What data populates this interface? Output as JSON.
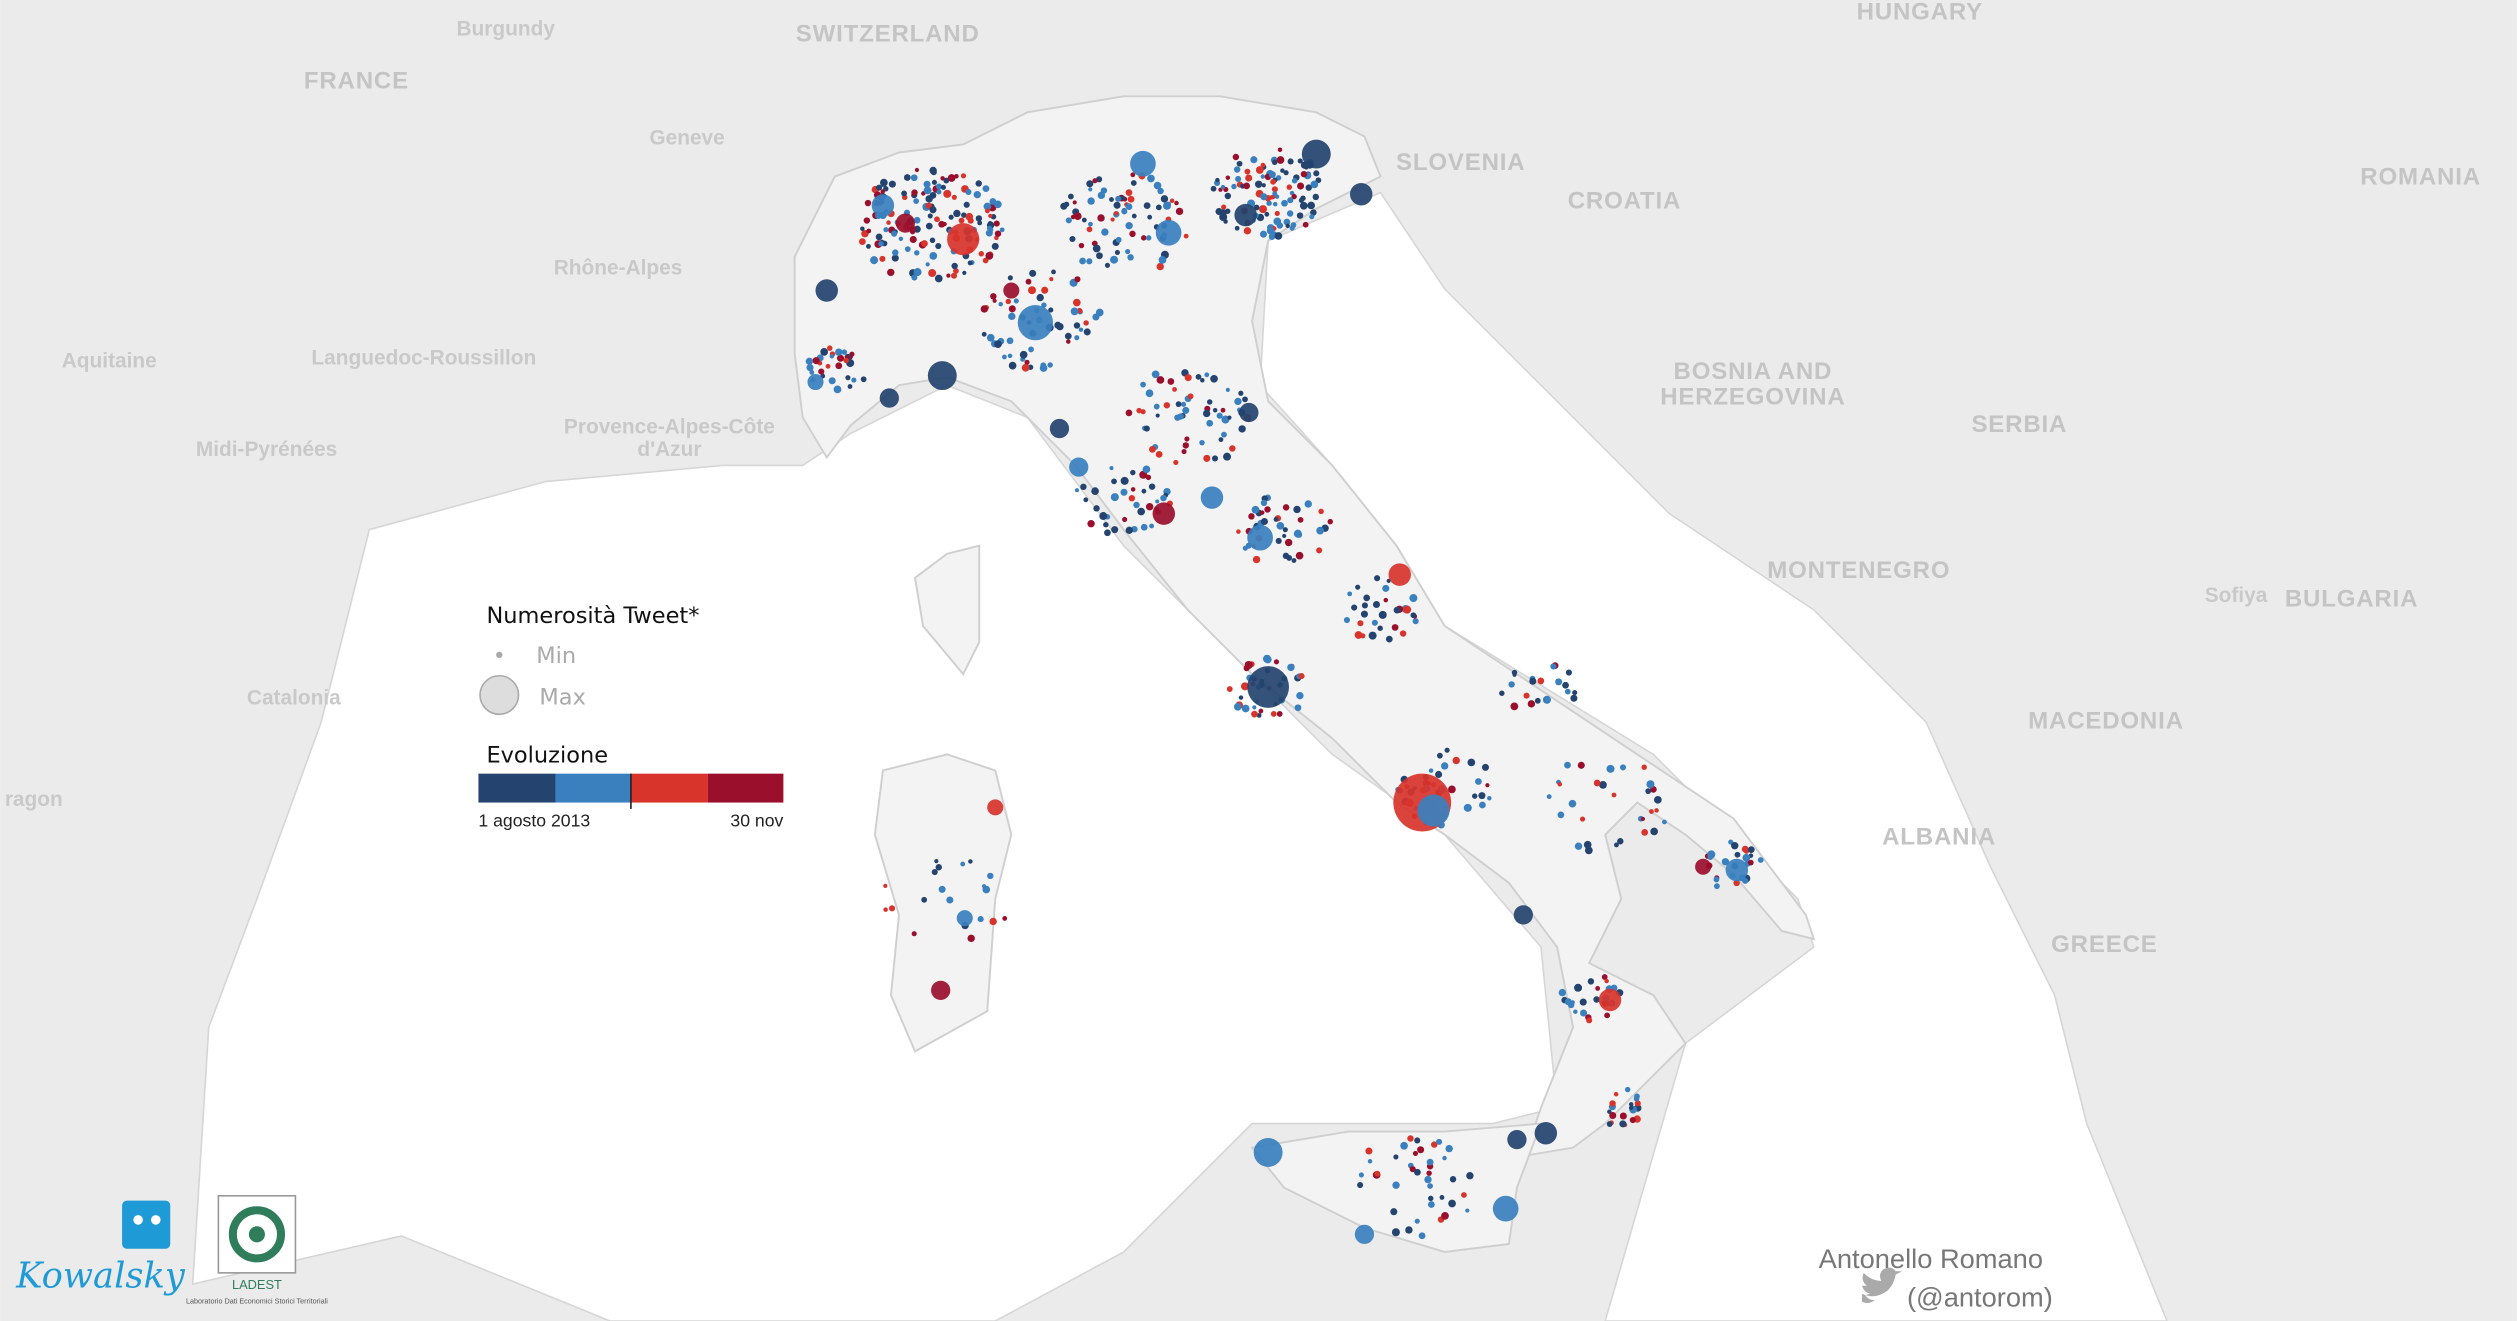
{
  "map": {
    "labels": [
      "Burgundy",
      "FRANCE",
      "SWITZERLAND",
      "HUNGARY",
      "ROMANIA",
      "SLOVENIA",
      "CROATIA",
      "Geneve",
      "Rhône-Alpes",
      "Aquitaine",
      "Languedoc-Roussillon",
      "Midi-Pyrénées",
      "Provence-Alpes-Côte",
      "d'Azur",
      "BOSNIA AND",
      "HERZEGOVINA",
      "SERBIA",
      "MONTENEGRO",
      "Sofiya",
      "BULGARIA",
      "Catalonia",
      "ragon",
      "MACEDONIA",
      "ALBANIA",
      "GREECE"
    ]
  },
  "legend": {
    "size_title": "Numerosità Tweet*",
    "size_min": "Min",
    "size_max": "Max",
    "color_title": "Evoluzione",
    "color_start": "1 agosto 2013",
    "color_end": "30 nov"
  },
  "logos": {
    "left": "Kowalsky",
    "right": "LADEST",
    "right_caption": "Laboratorio Dati Economici Storici Territoriali"
  },
  "credits": {
    "author": "Antonello Romano",
    "handle": "(@antorom)"
  }
}
